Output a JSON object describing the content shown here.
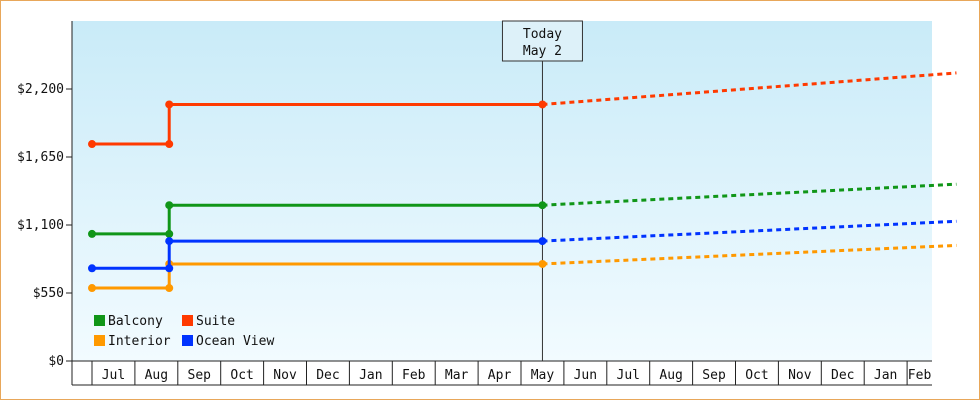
{
  "chart_data": {
    "type": "line",
    "step": true,
    "title": "",
    "xlabel": "",
    "ylabel": "",
    "ylim": [
      0,
      2750
    ],
    "y_ticks": [
      {
        "value": 0,
        "label": "$0"
      },
      {
        "value": 550,
        "label": "$550"
      },
      {
        "value": 1100,
        "label": "$1,100"
      },
      {
        "value": 1650,
        "label": "$1,650"
      },
      {
        "value": 2200,
        "label": "$2,200"
      }
    ],
    "x_months": [
      "Jul",
      "Aug",
      "Sep",
      "Oct",
      "Nov",
      "Dec",
      "Jan",
      "Feb",
      "Mar",
      "Apr",
      "May",
      "Jun",
      "Jul",
      "Aug",
      "Sep",
      "Oct",
      "Nov",
      "Dec",
      "Jan",
      "Feb"
    ],
    "x_range_months": [
      0,
      20.15
    ],
    "today": {
      "x": 10.5,
      "label_line1": "Today",
      "label_line2": "May 2"
    },
    "grid": false,
    "legend_position": "bottom-left",
    "series": [
      {
        "name": "Balcony",
        "color": "#109618",
        "points": [
          [
            0.0,
            1028
          ],
          [
            1.8,
            1028
          ],
          [
            1.8,
            1260
          ],
          [
            10.5,
            1260
          ]
        ],
        "projection": [
          [
            10.5,
            1260
          ],
          [
            20.15,
            1430
          ]
        ]
      },
      {
        "name": "Suite",
        "color": "#ff3a00",
        "points": [
          [
            0.0,
            1755
          ],
          [
            1.8,
            1755
          ],
          [
            1.8,
            2075
          ],
          [
            10.5,
            2075
          ]
        ],
        "projection": [
          [
            10.5,
            2075
          ],
          [
            20.15,
            2330
          ]
        ]
      },
      {
        "name": "Interior",
        "color": "#ff9900",
        "points": [
          [
            0.0,
            590
          ],
          [
            1.8,
            590
          ],
          [
            1.8,
            785
          ],
          [
            10.5,
            785
          ]
        ],
        "projection": [
          [
            10.5,
            785
          ],
          [
            20.15,
            935
          ]
        ]
      },
      {
        "name": "Ocean View",
        "color": "#0033ff",
        "points": [
          [
            0.0,
            750
          ],
          [
            1.8,
            750
          ],
          [
            1.8,
            970
          ],
          [
            10.5,
            970
          ]
        ],
        "projection": [
          [
            10.5,
            970
          ],
          [
            20.15,
            1130
          ]
        ]
      }
    ]
  }
}
